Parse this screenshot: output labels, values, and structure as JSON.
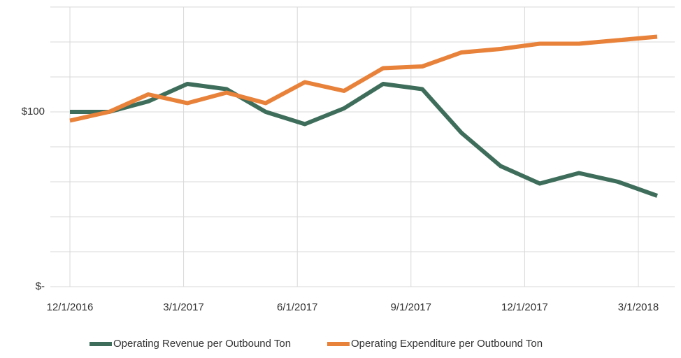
{
  "chart_data": {
    "type": "line",
    "categories": [
      "12/1/2016",
      null,
      null,
      "3/1/2017",
      null,
      null,
      "6/1/2017",
      null,
      null,
      "9/1/2017",
      null,
      null,
      "12/1/2017",
      null,
      null,
      "3/1/2018"
    ],
    "series": [
      {
        "name": "Operating Revenue per Outbound Ton",
        "color": "#3e6e5b",
        "values": [
          100,
          100,
          106,
          116,
          113,
          100,
          93,
          102,
          116,
          113,
          88,
          69,
          59,
          65,
          60,
          52
        ]
      },
      {
        "name": "Operating Expenditure per Outbound Ton",
        "color": "#e8823b",
        "values": [
          95,
          100,
          110,
          105,
          111,
          105,
          117,
          112,
          125,
          126,
          134,
          136,
          139,
          139,
          141,
          143
        ]
      }
    ],
    "ylim": [
      0,
      160
    ],
    "yticks": [
      {
        "value": 0,
        "label": "$-"
      },
      {
        "value": 100,
        "label": "$100"
      }
    ],
    "ygrid": [
      0,
      20,
      40,
      60,
      80,
      100,
      120,
      140,
      160
    ],
    "legend": "bottom"
  }
}
